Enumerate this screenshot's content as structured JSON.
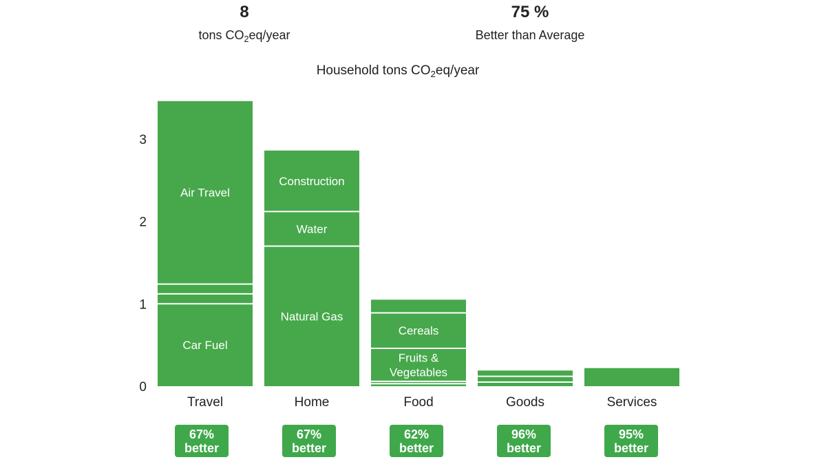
{
  "summary": {
    "total_value": "8",
    "total_unit_prefix": "tons CO",
    "total_unit_sub": "2",
    "total_unit_suffix": "eq/year",
    "better_value": "75 %",
    "better_label": "Better than Average"
  },
  "colors": {
    "bar": "#46a84b",
    "divider": "#ffffff",
    "text": "#222222",
    "badge": "#3fa84b"
  },
  "chart_data": {
    "type": "bar",
    "stacked": true,
    "title_prefix": "Household tons CO",
    "title_sub": "2",
    "title_suffix": "eq/year",
    "ylim": [
      0,
      3.5
    ],
    "yticks": [
      0,
      1,
      2,
      3
    ],
    "grid": false,
    "categories": [
      "Travel",
      "Home",
      "Food",
      "Goods",
      "Services"
    ],
    "stacks": [
      {
        "category": "Travel",
        "segments": [
          {
            "label": "Car Fuel",
            "value": 1.0
          },
          {
            "label": "",
            "value": 0.12
          },
          {
            "label": "",
            "value": 0.12
          },
          {
            "label": "Air Travel",
            "value": 2.22
          }
        ]
      },
      {
        "category": "Home",
        "segments": [
          {
            "label": "Natural Gas",
            "value": 1.7
          },
          {
            "label": "Water",
            "value": 0.42
          },
          {
            "label": "Construction",
            "value": 0.74
          }
        ]
      },
      {
        "category": "Food",
        "segments": [
          {
            "label": "",
            "value": 0.03
          },
          {
            "label": "",
            "value": 0.03
          },
          {
            "label": "Fruits & Vegetables",
            "value": 0.4
          },
          {
            "label": "Cereals",
            "value": 0.43
          },
          {
            "label": "",
            "value": 0.16
          }
        ]
      },
      {
        "category": "Goods",
        "segments": [
          {
            "label": "",
            "value": 0.05
          },
          {
            "label": "",
            "value": 0.07
          },
          {
            "label": "",
            "value": 0.07
          }
        ]
      },
      {
        "category": "Services",
        "segments": [
          {
            "label": "",
            "value": 0.22
          }
        ]
      }
    ],
    "badges": [
      {
        "category": "Travel",
        "percent": "67%",
        "word": "better"
      },
      {
        "category": "Home",
        "percent": "67%",
        "word": "better"
      },
      {
        "category": "Food",
        "percent": "62%",
        "word": "better"
      },
      {
        "category": "Goods",
        "percent": "96%",
        "word": "better"
      },
      {
        "category": "Services",
        "percent": "95%",
        "word": "better"
      }
    ]
  }
}
